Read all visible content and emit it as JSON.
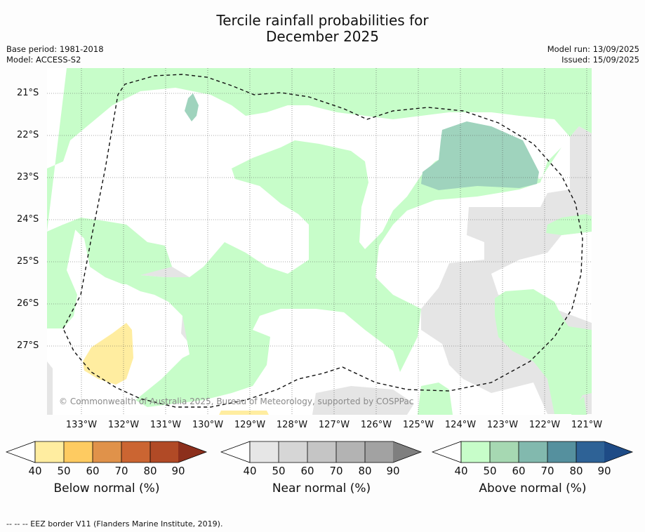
{
  "title_line1": "Tercile rainfall probabilities for",
  "title_line2": "December 2025",
  "base_period": "Base period: 1981-2018",
  "model": "Model: ACCESS-S2",
  "model_run": "Model run: 13/09/2025",
  "issued": "Issued: 15/09/2025",
  "copyright": "© Commonwealth of Australia 2025, Bureau of Meteorology, supported by COSPPac",
  "lat_labels": [
    "21°S",
    "22°S",
    "23°S",
    "24°S",
    "25°S",
    "26°S",
    "27°S"
  ],
  "lon_labels": [
    "133°W",
    "132°W",
    "131°W",
    "130°W",
    "129°W",
    "128°W",
    "127°W",
    "126°W",
    "125°W",
    "124°W",
    "123°W",
    "122°W",
    "121°W"
  ],
  "colorbars": [
    {
      "title": "Below normal (%)",
      "ticks": [
        "40",
        "50",
        "60",
        "70",
        "80",
        "90"
      ],
      "colors": [
        "#ffeda0",
        "#fecb61",
        "#e0924a",
        "#cb6532",
        "#b14a26",
        "#8c2f1c"
      ]
    },
    {
      "title": "Near normal (%)",
      "ticks": [
        "40",
        "50",
        "60",
        "70",
        "80",
        "90"
      ],
      "colors": [
        "#e6e6e6",
        "#d6d6d6",
        "#c5c5c5",
        "#b3b3b3",
        "#a2a2a2",
        "#7f7f7f"
      ]
    },
    {
      "title": "Above normal (%)",
      "ticks": [
        "40",
        "50",
        "60",
        "70",
        "80",
        "90"
      ],
      "colors": [
        "#c7fdc9",
        "#a6d8b2",
        "#82b9ae",
        "#55909e",
        "#2e6296",
        "#1e4b86"
      ]
    }
  ],
  "map_colors": {
    "above_40": "#c7fdc9",
    "above_50": "#9fd3bd",
    "near_40": "#e5e5e5",
    "below_40": "#ffeda0"
  },
  "footer": "--  --  -- EEZ border V11 (Flanders Marine Institute, 2019)."
}
